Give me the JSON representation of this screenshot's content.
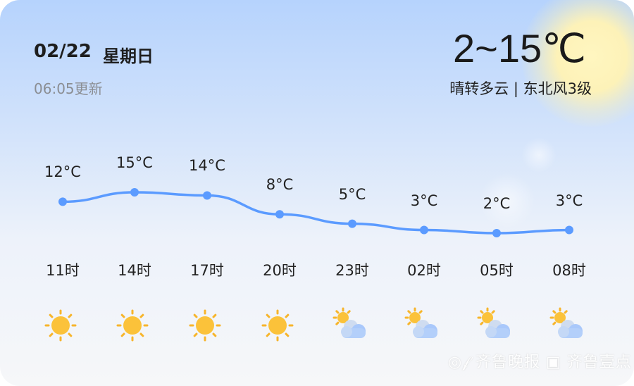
{
  "header": {
    "date": "02/22",
    "weekday": "星期日",
    "updated": "06:05更新",
    "temp_range": "2~15℃",
    "description": "晴转多云 | 东北风3级"
  },
  "forecast": [
    {
      "hour": "11时",
      "temp": "12°C",
      "value": 12,
      "icon": "sunny-icon"
    },
    {
      "hour": "14时",
      "temp": "15°C",
      "value": 15,
      "icon": "sunny-icon"
    },
    {
      "hour": "17时",
      "temp": "14°C",
      "value": 14,
      "icon": "sunny-icon"
    },
    {
      "hour": "20时",
      "temp": "8°C",
      "value": 8,
      "icon": "sunny-icon"
    },
    {
      "hour": "23时",
      "temp": "5°C",
      "value": 5,
      "icon": "partly-cloudy-icon"
    },
    {
      "hour": "02时",
      "temp": "3°C",
      "value": 3,
      "icon": "partly-cloudy-icon"
    },
    {
      "hour": "05时",
      "temp": "2°C",
      "value": 2,
      "icon": "partly-cloudy-icon"
    },
    {
      "hour": "08时",
      "temp": "3°C",
      "value": 3,
      "icon": "partly-cloudy-icon"
    }
  ],
  "colors": {
    "line": "#5b9bff",
    "sun": "#fbbf2f"
  },
  "watermark": "齐鲁晚报 齐鲁壹点"
}
